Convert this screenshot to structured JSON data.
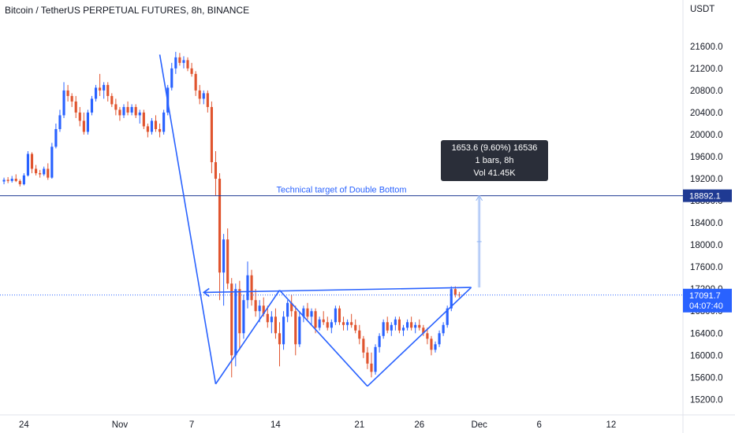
{
  "chart_data": {
    "type": "candlestick",
    "title": "Bitcoin / TetherUS PERPETUAL FUTURES, 8h, BINANCE",
    "currency_label": "USDT",
    "y_ticks": [
      15200,
      15600,
      16000,
      16400,
      16800,
      17200,
      17600,
      18000,
      18400,
      18800,
      19200,
      19600,
      20000,
      20400,
      20800,
      21200,
      21600
    ],
    "y_tick_labels": [
      "15200.0",
      "15600.0",
      "16000.0",
      "16400.0",
      "16800.0",
      "17200.0",
      "17600.0",
      "18000.0",
      "18400.0",
      "18800.0",
      "19200.0",
      "19600.0",
      "20000.0",
      "20400.0",
      "20800.0",
      "21200.0",
      "21600.0"
    ],
    "ylim": [
      14920,
      22040
    ],
    "x_tick_labels": [
      {
        "label": "24",
        "date": "2022-10-24"
      },
      {
        "label": "Nov",
        "date": "2022-11-01"
      },
      {
        "label": "7",
        "date": "2022-11-07"
      },
      {
        "label": "14",
        "date": "2022-11-14"
      },
      {
        "label": "21",
        "date": "2022-11-21"
      },
      {
        "label": "26",
        "date": "2022-11-26"
      },
      {
        "label": "Dec",
        "date": "2022-12-01"
      },
      {
        "label": "6",
        "date": "2022-12-06"
      },
      {
        "label": "12",
        "date": "2022-12-12"
      }
    ],
    "xlim": [
      "2022-10-22",
      "2022-12-18"
    ],
    "candles_ohlc": [
      [
        19150,
        19220,
        19100,
        19180
      ],
      [
        19180,
        19230,
        19120,
        19160
      ],
      [
        19160,
        19250,
        19130,
        19200
      ],
      [
        19200,
        19280,
        19140,
        19160
      ],
      [
        19160,
        19190,
        19060,
        19100
      ],
      [
        19100,
        19300,
        19080,
        19260
      ],
      [
        19260,
        19700,
        19240,
        19650
      ],
      [
        19650,
        19680,
        19300,
        19380
      ],
      [
        19380,
        19450,
        19260,
        19300
      ],
      [
        19300,
        19360,
        19220,
        19280
      ],
      [
        19280,
        19420,
        19250,
        19380
      ],
      [
        19380,
        19480,
        19180,
        19220
      ],
      [
        19220,
        19850,
        19200,
        19780
      ],
      [
        19780,
        20200,
        19750,
        20100
      ],
      [
        20100,
        20450,
        20050,
        20350
      ],
      [
        20350,
        20950,
        20300,
        20800
      ],
      [
        20800,
        20900,
        20600,
        20700
      ],
      [
        20700,
        20750,
        20500,
        20600
      ],
      [
        20600,
        20700,
        20300,
        20400
      ],
      [
        20400,
        20500,
        20150,
        20250
      ],
      [
        20250,
        20400,
        20000,
        20050
      ],
      [
        20050,
        20450,
        20000,
        20400
      ],
      [
        20400,
        20700,
        20350,
        20650
      ],
      [
        20650,
        20900,
        20600,
        20850
      ],
      [
        20850,
        21100,
        20700,
        20800
      ],
      [
        20800,
        20950,
        20650,
        20900
      ],
      [
        20900,
        20950,
        20600,
        20700
      ],
      [
        20700,
        20750,
        20500,
        20550
      ],
      [
        20550,
        20650,
        20350,
        20450
      ],
      [
        20450,
        20500,
        20250,
        20350
      ],
      [
        20350,
        20550,
        20300,
        20500
      ],
      [
        20500,
        20600,
        20350,
        20400
      ],
      [
        20400,
        20550,
        20350,
        20500
      ],
      [
        20500,
        20550,
        20300,
        20350
      ],
      [
        20350,
        20450,
        20200,
        20400
      ],
      [
        20400,
        20450,
        20100,
        20150
      ],
      [
        20150,
        20200,
        19950,
        20050
      ],
      [
        20050,
        20300,
        20000,
        20250
      ],
      [
        20250,
        20350,
        20050,
        20100
      ],
      [
        20100,
        20200,
        19950,
        20050
      ],
      [
        20050,
        20450,
        20000,
        20400
      ],
      [
        20400,
        20900,
        20350,
        20850
      ],
      [
        20850,
        21300,
        20800,
        21200
      ],
      [
        21200,
        21500,
        21100,
        21400
      ],
      [
        21400,
        21480,
        21250,
        21300
      ],
      [
        21300,
        21420,
        21200,
        21350
      ],
      [
        21350,
        21400,
        21150,
        21200
      ],
      [
        21200,
        21300,
        21050,
        21100
      ],
      [
        21100,
        21150,
        20700,
        20800
      ],
      [
        20800,
        20900,
        20550,
        20650
      ],
      [
        20650,
        20800,
        20550,
        20750
      ],
      [
        20750,
        20800,
        20400,
        20500
      ],
      [
        20500,
        20600,
        19300,
        19500
      ],
      [
        19500,
        19700,
        18900,
        19200
      ],
      [
        19200,
        19300,
        17000,
        17500
      ],
      [
        17500,
        18200,
        16900,
        18100
      ],
      [
        18100,
        18300,
        17200,
        17300
      ],
      [
        17300,
        17400,
        15600,
        16000
      ],
      [
        16000,
        17300,
        15800,
        17200
      ],
      [
        17200,
        17350,
        16100,
        16400
      ],
      [
        16400,
        17100,
        16300,
        17000
      ],
      [
        17000,
        17700,
        16850,
        17450
      ],
      [
        17450,
        17550,
        16900,
        17000
      ],
      [
        17000,
        17200,
        16700,
        16800
      ],
      [
        16800,
        17000,
        16600,
        16900
      ],
      [
        16900,
        17050,
        16700,
        16750
      ],
      [
        16750,
        16900,
        16500,
        16600
      ],
      [
        16600,
        16800,
        16400,
        16700
      ],
      [
        16700,
        16850,
        16300,
        16400
      ],
      [
        16400,
        16600,
        15800,
        16200
      ],
      [
        16200,
        16800,
        16100,
        16700
      ],
      [
        16700,
        17000,
        16600,
        16950
      ],
      [
        16950,
        17100,
        16700,
        16800
      ],
      [
        16800,
        16900,
        16000,
        16200
      ],
      [
        16200,
        16800,
        16150,
        16700
      ],
      [
        16700,
        16900,
        16600,
        16850
      ],
      [
        16850,
        16950,
        16650,
        16700
      ],
      [
        16700,
        16850,
        16550,
        16800
      ],
      [
        16800,
        16850,
        16400,
        16500
      ],
      [
        16500,
        16700,
        16450,
        16650
      ],
      [
        16650,
        16800,
        16550,
        16600
      ],
      [
        16600,
        16700,
        16450,
        16500
      ],
      [
        16500,
        16650,
        16400,
        16600
      ],
      [
        16600,
        16900,
        16550,
        16850
      ],
      [
        16850,
        16900,
        16550,
        16600
      ],
      [
        16600,
        16700,
        16450,
        16550
      ],
      [
        16550,
        16650,
        16450,
        16600
      ],
      [
        16600,
        16750,
        16500,
        16550
      ],
      [
        16550,
        16650,
        16400,
        16450
      ],
      [
        16450,
        16550,
        16200,
        16300
      ],
      [
        16300,
        16350,
        15950,
        16050
      ],
      [
        16050,
        16150,
        15750,
        15850
      ],
      [
        15850,
        16050,
        15600,
        15700
      ],
      [
        15700,
        16200,
        15650,
        16150
      ],
      [
        16150,
        16400,
        16050,
        16350
      ],
      [
        16350,
        16650,
        16300,
        16600
      ],
      [
        16600,
        16700,
        16400,
        16450
      ],
      [
        16450,
        16600,
        16350,
        16550
      ],
      [
        16550,
        16700,
        16450,
        16650
      ],
      [
        16650,
        16700,
        16400,
        16450
      ],
      [
        16450,
        16550,
        16350,
        16500
      ],
      [
        16500,
        16650,
        16450,
        16600
      ],
      [
        16600,
        16700,
        16450,
        16500
      ],
      [
        16500,
        16600,
        16400,
        16550
      ],
      [
        16550,
        16650,
        16450,
        16500
      ],
      [
        16500,
        16550,
        16350,
        16400
      ],
      [
        16400,
        16500,
        16200,
        16300
      ],
      [
        16300,
        16350,
        16000,
        16100
      ],
      [
        16100,
        16250,
        16050,
        16200
      ],
      [
        16200,
        16450,
        16150,
        16400
      ],
      [
        16400,
        16600,
        16350,
        16550
      ],
      [
        16550,
        16900,
        16500,
        16850
      ],
      [
        16850,
        17250,
        16800,
        17200
      ],
      [
        17200,
        17250,
        17050,
        17100
      ],
      [
        17100,
        17150,
        17050,
        17091.7
      ]
    ],
    "hline": {
      "value": 18892.1,
      "label": "18892.1",
      "annotation": "Technical target of Double Bottom"
    },
    "current_price": {
      "value": 17091.7,
      "label": "17091.7",
      "countdown": "04:07:40"
    },
    "pattern_lines": [
      [
        [
          "2022-11-04T08:00",
          "21450"
        ],
        [
          "2022-11-09T00:00",
          "15480"
        ]
      ],
      [
        [
          "2022-11-09T00:00",
          "15480"
        ],
        [
          "2022-11-14T08:00",
          "17180"
        ]
      ],
      [
        [
          "2022-11-14T08:00",
          "17180"
        ],
        [
          "2022-11-21T16:00",
          "15440"
        ]
      ],
      [
        [
          "2022-11-21T16:00",
          "15440"
        ],
        [
          "2022-11-30T08:00",
          "17230"
        ]
      ],
      [
        [
          "2022-11-08T00:00",
          "17140"
        ],
        [
          "2022-11-30T08:00",
          "17230"
        ]
      ]
    ],
    "measure": {
      "from": [
        "2022-11-30T16:00",
        17230
      ],
      "to": [
        "2022-11-30T16:00",
        18890
      ],
      "tooltip": [
        "1653.6 (9.60%) 16536",
        "1 bars, 8h",
        "Vol 41.45K"
      ]
    },
    "colors": {
      "up": "#2962ff",
      "down": "#e0542e",
      "line": "#2962ff",
      "measure": "#90b4f4",
      "tooltip_bg": "#2a2e39"
    }
  }
}
